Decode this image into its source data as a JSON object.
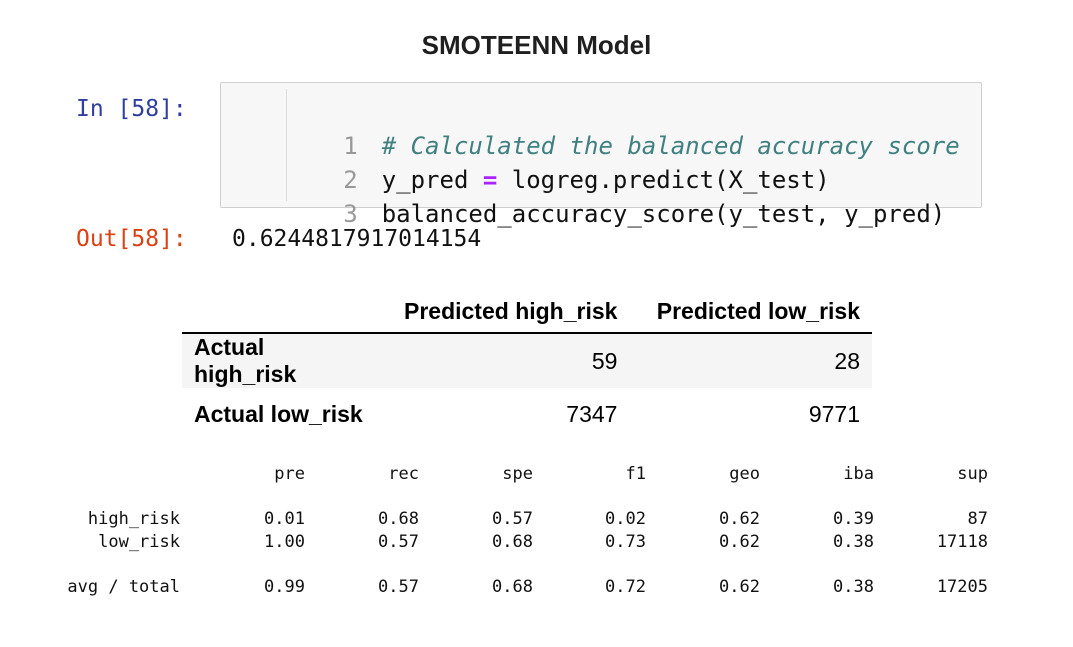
{
  "page": {
    "title": "SMOTEENN Model"
  },
  "input_cell": {
    "prompt": "In [58]:",
    "lines": [
      {
        "num": "1",
        "text": "# Calculated the balanced accuracy score"
      },
      {
        "num": "2",
        "text": "y_pred = logreg.predict(X_test)"
      },
      {
        "num": "3",
        "text": "balanced_accuracy_score(y_test, y_pred)"
      }
    ]
  },
  "output_cell": {
    "prompt": "Out[58]:",
    "value": "0.6244817917014154"
  },
  "confusion_matrix": {
    "columns": [
      "Predicted high_risk",
      "Predicted low_risk"
    ],
    "rows": [
      {
        "label": "Actual high_risk",
        "values": [
          "59",
          "28"
        ]
      },
      {
        "label": "Actual low_risk",
        "values": [
          "7347",
          "9771"
        ]
      }
    ]
  },
  "classification_report": {
    "headers": [
      "pre",
      "rec",
      "spe",
      "f1",
      "geo",
      "iba",
      "sup"
    ],
    "rows": [
      {
        "label": "high_risk",
        "values": [
          "0.01",
          "0.68",
          "0.57",
          "0.02",
          "0.62",
          "0.39",
          "87"
        ]
      },
      {
        "label": "low_risk",
        "values": [
          "1.00",
          "0.57",
          "0.68",
          "0.73",
          "0.62",
          "0.38",
          "17118"
        ]
      },
      {
        "label": "avg / total",
        "values": [
          "0.99",
          "0.57",
          "0.68",
          "0.72",
          "0.62",
          "0.38",
          "17205"
        ]
      }
    ]
  }
}
